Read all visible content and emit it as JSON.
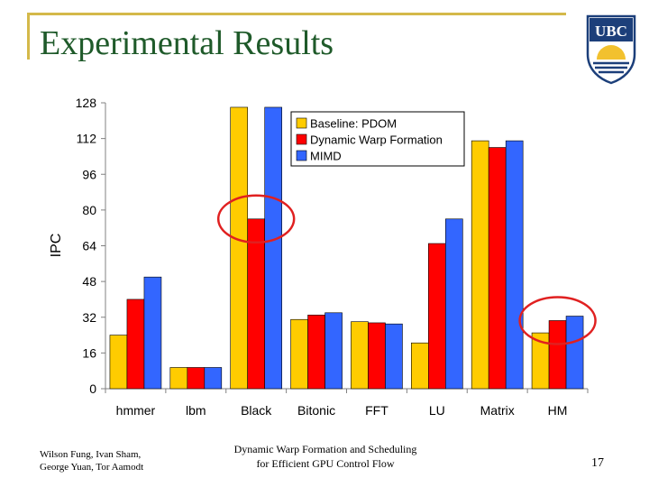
{
  "slide": {
    "title": "Experimental Results",
    "page_number": "17",
    "authors_line1": "Wilson Fung, Ivan Sham,",
    "authors_line2": "George Yuan, Tor Aamodt",
    "talk_line1": "Dynamic Warp Formation and Scheduling",
    "talk_line2": "for Efficient GPU Control Flow",
    "logo_text": "UBC",
    "accent_color": "#d4b94a",
    "title_color": "#1f5a2a",
    "logo_color": "#1c3f7a"
  },
  "chart_data": {
    "type": "bar",
    "title": "",
    "xlabel": "",
    "ylabel": "IPC",
    "ylim": [
      0,
      128
    ],
    "yticks": [
      0,
      16,
      32,
      48,
      64,
      80,
      96,
      112,
      128
    ],
    "grid": false,
    "legend_position": "top-right",
    "categories": [
      "hmmer",
      "lbm",
      "Black",
      "Bitonic",
      "FFT",
      "LU",
      "Matrix",
      "HM"
    ],
    "series": [
      {
        "name": "Baseline: PDOM",
        "color": "#ffcc00",
        "values": [
          24,
          9.5,
          126,
          31,
          30,
          20.5,
          111,
          25
        ]
      },
      {
        "name": "Dynamic Warp Formation",
        "color": "#ff0000",
        "values": [
          40,
          9.5,
          76,
          33,
          29.5,
          65,
          108,
          30.5
        ]
      },
      {
        "name": "MIMD",
        "color": "#3366ff",
        "values": [
          50,
          9.5,
          126,
          34,
          29,
          76,
          111,
          32.5
        ]
      }
    ],
    "annotations": [
      {
        "type": "ellipse",
        "category": "Black",
        "series": "Dynamic Warp Formation",
        "color": "#e02020"
      },
      {
        "type": "ellipse",
        "category": "HM",
        "series": "Dynamic Warp Formation",
        "color": "#e02020"
      }
    ]
  }
}
